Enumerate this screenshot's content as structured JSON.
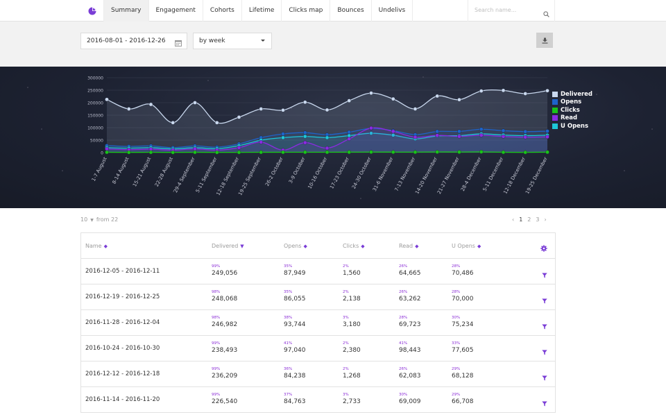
{
  "nav": {
    "tabs": [
      "Summary",
      "Engagement",
      "Cohorts",
      "Lifetime",
      "Clicks map",
      "Bounces",
      "Undelivs"
    ],
    "active_tab": "Summary",
    "search_placeholder": "Search name..."
  },
  "filters": {
    "date_range": "2016-08-01 - 2016-12-26",
    "period": "by week"
  },
  "colors": {
    "accent": "#7a3dd6",
    "delivered": "#c9d8ee",
    "opens": "#1e63c9",
    "clicks": "#19c319",
    "read": "#8a2be2",
    "uopens": "#1dc6d8"
  },
  "chart_data": {
    "type": "line",
    "categories": [
      "1-7 August",
      "8-14 August",
      "15-21 August",
      "22-28 August",
      "29-4 September",
      "5-11 September",
      "12-18 September",
      "19-25 September",
      "26-2 October",
      "3-9 October",
      "10-16 October",
      "17-23 October",
      "24-30 October",
      "31-6 November",
      "7-13 November",
      "14-20 November",
      "21-27 November",
      "28-4 December",
      "5-11 December",
      "12-18 December",
      "19-25 December"
    ],
    "yticks": [
      0,
      50000,
      100000,
      150000,
      200000,
      250000,
      300000
    ],
    "ylim": [
      0,
      300000
    ],
    "legend_position": "right",
    "series": [
      {
        "name": "Delivered",
        "color": "#c9d8ee",
        "values": [
          213000,
          175000,
          193000,
          120000,
          200000,
          120000,
          142000,
          175000,
          170000,
          202000,
          171000,
          208000,
          238493,
          215000,
          175000,
          226540,
          212000,
          246982,
          249056,
          236209,
          248068
        ]
      },
      {
        "name": "Opens",
        "color": "#1e63c9",
        "values": [
          28000,
          25000,
          27000,
          20000,
          27000,
          22000,
          35000,
          60000,
          75000,
          80000,
          72000,
          82000,
          97040,
          88000,
          72000,
          84763,
          85000,
          93744,
          87949,
          84238,
          86055
        ]
      },
      {
        "name": "Clicks",
        "color": "#19c319",
        "values": [
          1500,
          1200,
          1300,
          900,
          1400,
          1000,
          1200,
          1500,
          1600,
          1800,
          1700,
          2000,
          2380,
          2200,
          2000,
          2733,
          2500,
          3180,
          1560,
          1268,
          2138
        ]
      },
      {
        "name": "Read",
        "color": "#8a2be2",
        "values": [
          15000,
          12000,
          14000,
          10000,
          15000,
          10000,
          20000,
          42000,
          10000,
          40000,
          18000,
          55000,
          98443,
          85000,
          62000,
          69009,
          65000,
          69723,
          64665,
          62083,
          63262
        ]
      },
      {
        "name": "U Opens",
        "color": "#1dc6d8",
        "values": [
          20000,
          18000,
          20000,
          15000,
          20000,
          16000,
          28000,
          50000,
          60000,
          65000,
          60000,
          68000,
          77605,
          70000,
          55000,
          66708,
          68000,
          75234,
          70486,
          68128,
          70000
        ]
      }
    ]
  },
  "pagination": {
    "page_size": "10",
    "from_label": "from 22",
    "prev": "‹",
    "pages": [
      "1",
      "2",
      "3"
    ],
    "next": "›"
  },
  "table": {
    "columns": [
      "Name",
      "Delivered",
      "Opens",
      "Clicks",
      "Read",
      "U Opens"
    ],
    "rows": [
      {
        "name": "2016-12-05 - 2016-12-11",
        "delivered": {
          "pct": "99%",
          "value": "249,056"
        },
        "opens": {
          "pct": "35%",
          "value": "87,949"
        },
        "clicks": {
          "pct": "2%",
          "value": "1,560"
        },
        "read": {
          "pct": "26%",
          "value": "64,665"
        },
        "uopens": {
          "pct": "28%",
          "value": "70,486"
        }
      },
      {
        "name": "2016-12-19 - 2016-12-25",
        "delivered": {
          "pct": "98%",
          "value": "248,068"
        },
        "opens": {
          "pct": "35%",
          "value": "86,055"
        },
        "clicks": {
          "pct": "2%",
          "value": "2,138"
        },
        "read": {
          "pct": "26%",
          "value": "63,262"
        },
        "uopens": {
          "pct": "28%",
          "value": "70,000"
        }
      },
      {
        "name": "2016-11-28 - 2016-12-04",
        "delivered": {
          "pct": "98%",
          "value": "246,982"
        },
        "opens": {
          "pct": "38%",
          "value": "93,744"
        },
        "clicks": {
          "pct": "3%",
          "value": "3,180"
        },
        "read": {
          "pct": "28%",
          "value": "69,723"
        },
        "uopens": {
          "pct": "30%",
          "value": "75,234"
        }
      },
      {
        "name": "2016-10-24 - 2016-10-30",
        "delivered": {
          "pct": "99%",
          "value": "238,493"
        },
        "opens": {
          "pct": "41%",
          "value": "97,040"
        },
        "clicks": {
          "pct": "2%",
          "value": "2,380"
        },
        "read": {
          "pct": "41%",
          "value": "98,443"
        },
        "uopens": {
          "pct": "33%",
          "value": "77,605"
        }
      },
      {
        "name": "2016-12-12 - 2016-12-18",
        "delivered": {
          "pct": "99%",
          "value": "236,209"
        },
        "opens": {
          "pct": "36%",
          "value": "84,238"
        },
        "clicks": {
          "pct": "2%",
          "value": "1,268"
        },
        "read": {
          "pct": "26%",
          "value": "62,083"
        },
        "uopens": {
          "pct": "29%",
          "value": "68,128"
        }
      },
      {
        "name": "2016-11-14 - 2016-11-20",
        "delivered": {
          "pct": "99%",
          "value": "226,540"
        },
        "opens": {
          "pct": "37%",
          "value": "84,763"
        },
        "clicks": {
          "pct": "3%",
          "value": "2,733"
        },
        "read": {
          "pct": "30%",
          "value": "69,009"
        },
        "uopens": {
          "pct": "29%",
          "value": "66,708"
        }
      }
    ]
  }
}
